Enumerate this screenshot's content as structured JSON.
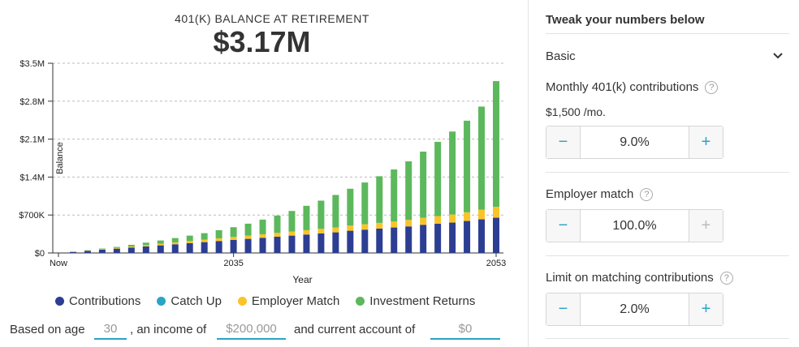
{
  "header": {
    "subtitle": "401(K) BALANCE AT RETIREMENT",
    "balance": "$3.17M"
  },
  "chart_data": {
    "type": "bar",
    "stacked": true,
    "xlabel": "Year",
    "ylabel": "Balance",
    "x_ticks": [
      "Now",
      "2035",
      "2053"
    ],
    "y_ticks": [
      "$0",
      "$700K",
      "$1.4M",
      "$2.1M",
      "$2.8M",
      "$3.5M"
    ],
    "ylim": [
      0,
      3500000
    ],
    "grid": true,
    "categories": [
      2023,
      2024,
      2025,
      2026,
      2027,
      2028,
      2029,
      2030,
      2031,
      2032,
      2033,
      2034,
      2035,
      2036,
      2037,
      2038,
      2039,
      2040,
      2041,
      2042,
      2043,
      2044,
      2045,
      2046,
      2047,
      2048,
      2049,
      2050,
      2051,
      2052,
      2053
    ],
    "series": [
      {
        "name": "Contributions",
        "color": "#2c3e92",
        "values": [
          0,
          20000,
          40000,
          60000,
          80000,
          100000,
          120000,
          140000,
          160000,
          180000,
          200000,
          220000,
          240000,
          260000,
          280000,
          300000,
          320000,
          340000,
          360000,
          380000,
          410000,
          430000,
          450000,
          470000,
          490000,
          520000,
          540000,
          560000,
          590000,
          620000,
          650000
        ]
      },
      {
        "name": "Catch Up",
        "color": "#2aa4c6",
        "values": [
          0,
          0,
          0,
          0,
          0,
          0,
          0,
          0,
          0,
          0,
          0,
          0,
          0,
          0,
          0,
          0,
          0,
          0,
          0,
          0,
          0,
          0,
          0,
          0,
          0,
          0,
          0,
          0,
          0,
          0,
          0
        ]
      },
      {
        "name": "Employer Match",
        "color": "#f8c42a",
        "values": [
          0,
          5000,
          8000,
          12000,
          16000,
          20000,
          25000,
          30000,
          35000,
          40000,
          45000,
          50000,
          55000,
          60000,
          65000,
          70000,
          75000,
          80000,
          85000,
          90000,
          95000,
          100000,
          105000,
          110000,
          120000,
          130000,
          140000,
          150000,
          160000,
          180000,
          200000
        ]
      },
      {
        "name": "Investment Returns",
        "color": "#5cb85c",
        "values": [
          0,
          0,
          5000,
          10000,
          15000,
          30000,
          45000,
          60000,
          80000,
          100000,
          120000,
          150000,
          180000,
          220000,
          270000,
          320000,
          380000,
          450000,
          520000,
          600000,
          680000,
          770000,
          860000,
          960000,
          1080000,
          1220000,
          1370000,
          1530000,
          1690000,
          1900000,
          2320000
        ]
      }
    ]
  },
  "legend": {
    "items": [
      {
        "label": "Contributions",
        "color": "#2c3e92"
      },
      {
        "label": "Catch Up",
        "color": "#2aa4c6"
      },
      {
        "label": "Employer Match",
        "color": "#f8c42a"
      },
      {
        "label": "Investment Returns",
        "color": "#5cb85c"
      }
    ]
  },
  "inputs": {
    "prefix": "Based on age",
    "age": "30",
    "income_label": ", an income of",
    "income": "$200,000",
    "account_label": "and current account of",
    "account": "$0"
  },
  "panel": {
    "title": "Tweak your numbers below",
    "section": "Basic",
    "contrib_label": "Monthly 401(k) contributions",
    "contrib_sub": "$1,500 /mo.",
    "contrib_value": "9.0%",
    "match_label": "Employer match",
    "match_value": "100.0%",
    "limit_label": "Limit on matching contributions",
    "limit_value": "2.0%",
    "minus": "−",
    "plus": "+",
    "help": "?"
  }
}
